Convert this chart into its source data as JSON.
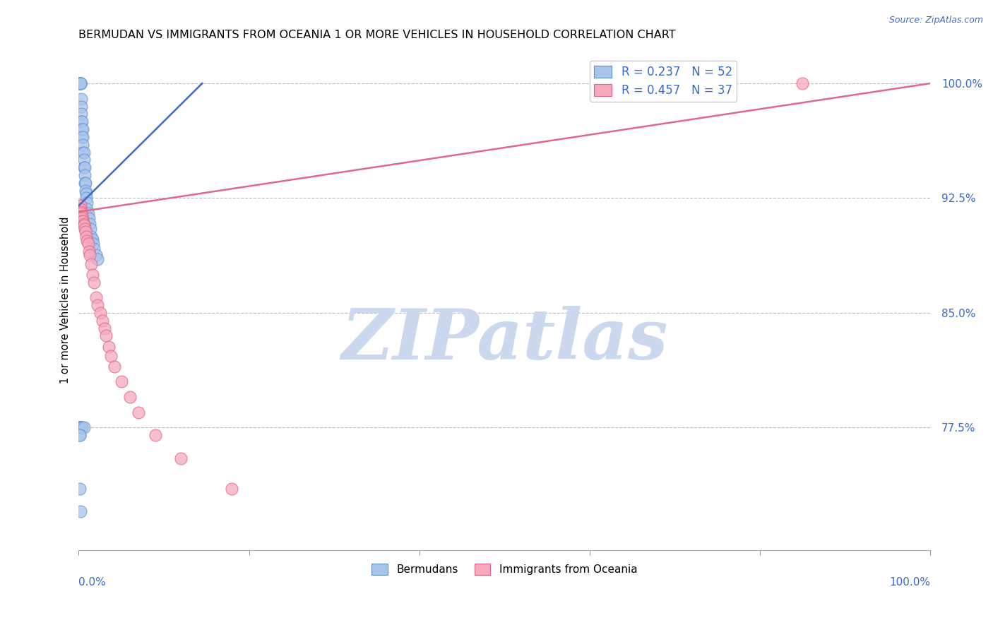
{
  "title": "BERMUDAN VS IMMIGRANTS FROM OCEANIA 1 OR MORE VEHICLES IN HOUSEHOLD CORRELATION CHART",
  "source": "Source: ZipAtlas.com",
  "ylabel": "1 or more Vehicles in Household",
  "ylabel_ticks": [
    "100.0%",
    "92.5%",
    "85.0%",
    "77.5%"
  ],
  "ylabel_values": [
    1.0,
    0.925,
    0.85,
    0.775
  ],
  "x_min": 0.0,
  "x_max": 1.0,
  "y_min": 0.695,
  "y_max": 1.022,
  "blue_R": 0.237,
  "blue_N": 52,
  "pink_R": 0.457,
  "pink_N": 37,
  "blue_color": "#A8C4EC",
  "pink_color": "#F5AABE",
  "blue_edge_color": "#6090D0",
  "pink_edge_color": "#E06080",
  "blue_line_color": "#3A6AC8",
  "pink_line_color": "#E06888",
  "legend_text_color": "#3A6AC8",
  "watermark_text": "ZIPatlas",
  "watermark_color": "#CCD8EE",
  "blue_x": [
    0.001,
    0.001,
    0.001,
    0.002,
    0.002,
    0.002,
    0.002,
    0.003,
    0.003,
    0.003,
    0.003,
    0.004,
    0.004,
    0.004,
    0.005,
    0.005,
    0.005,
    0.005,
    0.006,
    0.006,
    0.006,
    0.007,
    0.007,
    0.007,
    0.008,
    0.008,
    0.009,
    0.009,
    0.01,
    0.01,
    0.011,
    0.012,
    0.013,
    0.014,
    0.015,
    0.016,
    0.017,
    0.018,
    0.02,
    0.022,
    0.001,
    0.001,
    0.002,
    0.002,
    0.003,
    0.003,
    0.004,
    0.006,
    0.001,
    0.001,
    0.001,
    0.002
  ],
  "blue_y": [
    1.0,
    1.0,
    1.0,
    1.0,
    1.0,
    1.0,
    1.0,
    0.99,
    0.985,
    0.98,
    0.975,
    0.975,
    0.97,
    0.965,
    0.97,
    0.965,
    0.96,
    0.955,
    0.955,
    0.95,
    0.945,
    0.945,
    0.94,
    0.935,
    0.935,
    0.93,
    0.928,
    0.925,
    0.922,
    0.918,
    0.915,
    0.912,
    0.908,
    0.905,
    0.9,
    0.898,
    0.895,
    0.892,
    0.888,
    0.885,
    0.775,
    0.775,
    0.775,
    0.775,
    0.775,
    0.775,
    0.775,
    0.775,
    0.77,
    0.77,
    0.735,
    0.72
  ],
  "pink_x": [
    0.001,
    0.002,
    0.002,
    0.003,
    0.003,
    0.004,
    0.004,
    0.005,
    0.005,
    0.006,
    0.006,
    0.007,
    0.008,
    0.009,
    0.01,
    0.011,
    0.012,
    0.013,
    0.015,
    0.016,
    0.018,
    0.02,
    0.022,
    0.025,
    0.028,
    0.03,
    0.032,
    0.035,
    0.038,
    0.042,
    0.05,
    0.06,
    0.07,
    0.09,
    0.12,
    0.18,
    0.85
  ],
  "pink_y": [
    0.92,
    0.92,
    0.918,
    0.916,
    0.915,
    0.913,
    0.912,
    0.91,
    0.91,
    0.908,
    0.907,
    0.905,
    0.903,
    0.9,
    0.897,
    0.895,
    0.89,
    0.888,
    0.882,
    0.875,
    0.87,
    0.86,
    0.855,
    0.85,
    0.845,
    0.84,
    0.835,
    0.828,
    0.822,
    0.815,
    0.805,
    0.795,
    0.785,
    0.77,
    0.755,
    0.735,
    1.0
  ],
  "blue_line_x0": 0.0,
  "blue_line_y0": 0.92,
  "blue_line_x1": 0.145,
  "blue_line_y1": 1.0,
  "pink_line_x0": 0.0,
  "pink_line_y0": 0.916,
  "pink_line_x1": 1.0,
  "pink_line_y1": 1.0
}
